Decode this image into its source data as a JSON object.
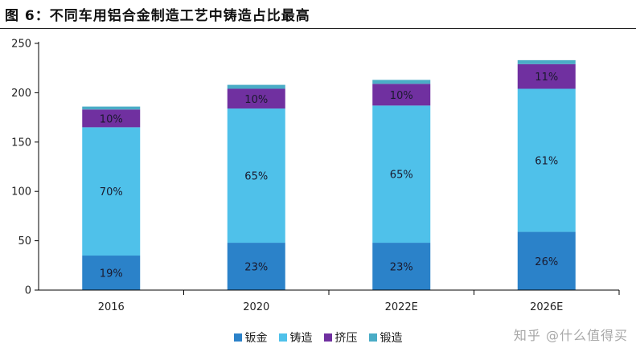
{
  "figure_title": "图 6：不同车用铝合金制造工艺中铸造占比最高",
  "watermark": "知乎 @什么值得买",
  "colors": {
    "钣金": "#2b82c9",
    "铸造": "#4fc1ea",
    "挤压": "#7030a0",
    "锻造": "#4aacc6",
    "axis": "#000000"
  },
  "chart_data": {
    "type": "bar",
    "stacked": true,
    "categories": [
      "2016",
      "2020",
      "2022E",
      "2026E"
    ],
    "ylim": [
      0,
      250
    ],
    "yticks": [
      0,
      50,
      100,
      150,
      200,
      250
    ],
    "grid": false,
    "legend_position": "bottom",
    "series": [
      {
        "name": "钣金",
        "values": [
          35,
          48,
          48,
          59
        ],
        "labels": [
          "19%",
          "23%",
          "23%",
          "26%"
        ]
      },
      {
        "name": "铸造",
        "values": [
          130,
          136,
          139,
          145
        ],
        "labels": [
          "70%",
          "65%",
          "65%",
          "61%"
        ]
      },
      {
        "name": "挤压",
        "values": [
          18,
          20,
          22,
          25
        ],
        "labels": [
          "10%",
          "10%",
          "10%",
          "11%"
        ]
      },
      {
        "name": "锻造",
        "values": [
          3,
          4,
          4,
          4
        ],
        "labels": [
          "",
          "",
          "",
          ""
        ]
      }
    ]
  }
}
